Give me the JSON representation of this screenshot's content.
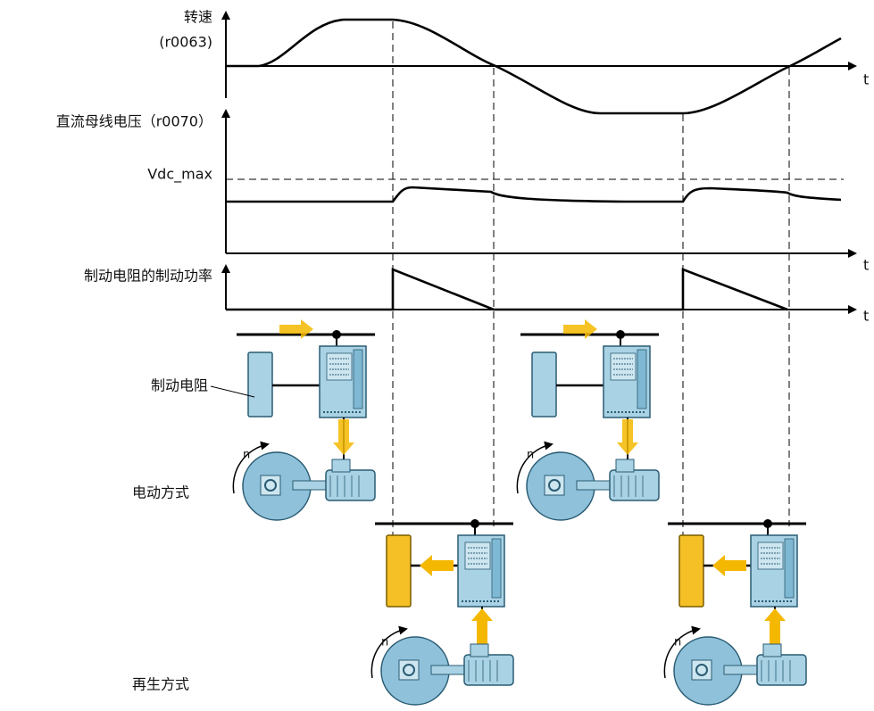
{
  "speed": {
    "label": "转速",
    "param": "(r0063)",
    "axis": "t"
  },
  "voltage": {
    "label": "直流母线电压（r0070）",
    "threshold": "Vdc_max",
    "axis": "t"
  },
  "power": {
    "label": "制动电阻的制动功率",
    "axis": "t"
  },
  "resistor_label": "制动电阻",
  "modes": {
    "motoring": "电动方式",
    "regenerating": "再生方式"
  },
  "rotation_labels": [
    "n",
    "n",
    "n",
    "n"
  ]
}
